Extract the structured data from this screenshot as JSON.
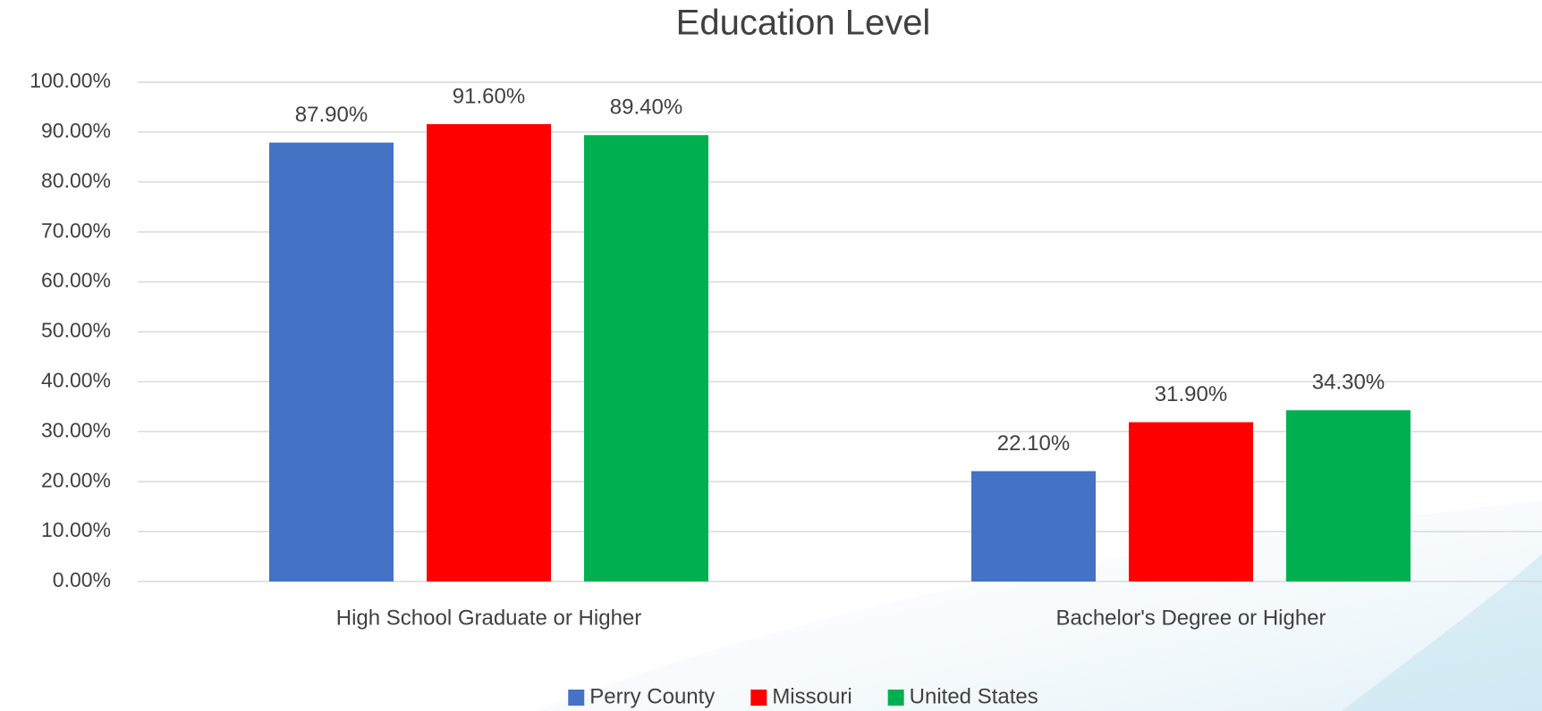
{
  "chart_data": {
    "type": "bar",
    "title": "Education Level",
    "categories": [
      "High School Graduate or Higher",
      "Bachelor's Degree or Higher"
    ],
    "series": [
      {
        "name": "Perry County",
        "color": "#4472c4",
        "values": [
          87.9,
          22.1
        ],
        "value_labels": [
          "87.90%",
          "22.10%"
        ]
      },
      {
        "name": "Missouri",
        "color": "#ff0000",
        "values": [
          91.6,
          31.9
        ],
        "value_labels": [
          "91.60%",
          "31.90%"
        ]
      },
      {
        "name": "United States",
        "color": "#00b050",
        "values": [
          89.4,
          34.3
        ],
        "value_labels": [
          "89.40%",
          "34.30%"
        ]
      }
    ],
    "ylim": [
      0,
      100
    ],
    "yticks": [
      {
        "value": 0,
        "label": "0.00%"
      },
      {
        "value": 10,
        "label": "10.00%"
      },
      {
        "value": 20,
        "label": "20.00%"
      },
      {
        "value": 30,
        "label": "30.00%"
      },
      {
        "value": 40,
        "label": "40.00%"
      },
      {
        "value": 50,
        "label": "50.00%"
      },
      {
        "value": 60,
        "label": "60.00%"
      },
      {
        "value": 70,
        "label": "70.00%"
      },
      {
        "value": 80,
        "label": "80.00%"
      },
      {
        "value": 90,
        "label": "90.00%"
      },
      {
        "value": 100,
        "label": "100.00%"
      }
    ],
    "grid": true,
    "legend": "bottom"
  }
}
